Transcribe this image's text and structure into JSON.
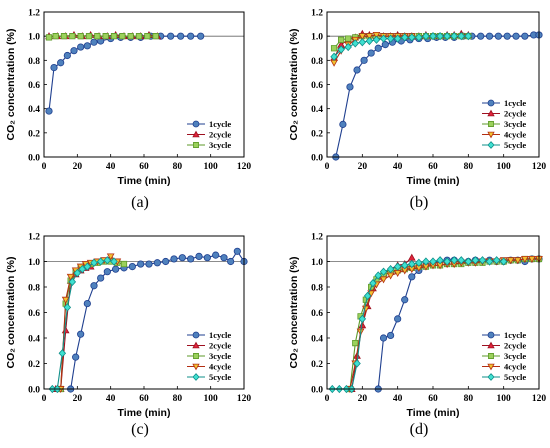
{
  "captions": [
    "(a)",
    "(b)",
    "(c)",
    "(d)"
  ],
  "series_styles": {
    "1cycle": {
      "color": "#4f81bd",
      "stroke": "#1f3f8f",
      "marker": "circle"
    },
    "2cycle": {
      "color": "#e0243b",
      "stroke": "#9e1020",
      "marker": "triangle"
    },
    "3cycle": {
      "color": "#9bd15c",
      "stroke": "#5e9a2a",
      "marker": "square"
    },
    "4cycle": {
      "color": "#f2c230",
      "stroke": "#b32e12",
      "marker": "triangle-down"
    },
    "5cycle": {
      "color": "#3fe0d0",
      "stroke": "#0f8f8a",
      "marker": "diamond"
    }
  },
  "chart_data": [
    {
      "type": "line",
      "panel": "(a)",
      "xlabel": "Time (min)",
      "ylabel": "CO₂ concentration (%)",
      "xlim": [
        0,
        120
      ],
      "ylim": [
        0,
        1.2
      ],
      "xticks": [
        "0",
        "20",
        "40",
        "60",
        "80",
        "100",
        "120"
      ],
      "yticks": [
        "0.0",
        "0.2",
        "0.4",
        "0.6",
        "0.8",
        "1.0",
        "1.2"
      ],
      "reference_line": 1.0,
      "legend": "bottom-right",
      "series": [
        {
          "name": "1cycle",
          "x": [
            3,
            6,
            10,
            14,
            18,
            22,
            26,
            30,
            34,
            40,
            46,
            52,
            58,
            64,
            70,
            76,
            82,
            88,
            94
          ],
          "y": [
            0.38,
            0.74,
            0.78,
            0.84,
            0.88,
            0.91,
            0.92,
            0.95,
            0.96,
            0.98,
            0.99,
            0.99,
            0.99,
            1.0,
            1.0,
            1.0,
            1.0,
            1.0,
            1.0
          ]
        },
        {
          "name": "2cycle",
          "x": [
            3,
            8,
            13,
            18,
            23,
            28,
            33,
            38,
            43,
            48,
            53,
            58,
            63,
            68
          ],
          "y": [
            1.0,
            1.0,
            1.0,
            1.01,
            1.0,
            1.01,
            1.0,
            1.0,
            1.01,
            1.0,
            1.0,
            1.0,
            1.01,
            1.0
          ]
        },
        {
          "name": "3cycle",
          "x": [
            3,
            7,
            12,
            17,
            22,
            27,
            32,
            37,
            42,
            47,
            52,
            57,
            62,
            67
          ],
          "y": [
            0.99,
            1.0,
            1.0,
            1.0,
            1.0,
            1.0,
            1.0,
            1.0,
            1.0,
            1.0,
            1.0,
            1.0,
            1.0,
            1.0
          ]
        }
      ]
    },
    {
      "type": "line",
      "panel": "(b)",
      "xlabel": "Time (min)",
      "ylabel": "CO₂ concentration (%)",
      "xlim": [
        0,
        120
      ],
      "ylim": [
        0,
        1.2
      ],
      "xticks": [
        "0",
        "20",
        "40",
        "60",
        "80",
        "100",
        "120"
      ],
      "yticks": [
        "0.0",
        "0.2",
        "0.4",
        "0.6",
        "0.8",
        "1.0",
        "1.2"
      ],
      "reference_line": 1.0,
      "legend": "bottom-right",
      "series": [
        {
          "name": "1cycle",
          "x": [
            5,
            9,
            13,
            17,
            21,
            25,
            29,
            33,
            37,
            42,
            47,
            52,
            57,
            62,
            67,
            72,
            77,
            82,
            87,
            92,
            97,
            102,
            107,
            112,
            117,
            120
          ],
          "y": [
            0.0,
            0.27,
            0.58,
            0.72,
            0.8,
            0.86,
            0.9,
            0.93,
            0.95,
            0.96,
            0.97,
            0.98,
            0.98,
            0.99,
            0.99,
            0.99,
            1.0,
            1.0,
            1.0,
            1.0,
            1.0,
            1.0,
            1.0,
            1.0,
            1.01,
            1.01
          ]
        },
        {
          "name": "2cycle",
          "x": [
            4,
            8,
            12,
            16,
            20,
            24,
            28,
            32,
            36,
            40,
            44,
            48,
            52,
            56,
            60,
            64,
            68,
            72,
            76,
            80
          ],
          "y": [
            0.82,
            0.93,
            0.97,
            0.99,
            1.02,
            1.01,
            1.0,
            1.0,
            1.0,
            1.01,
            1.0,
            1.0,
            1.0,
            1.01,
            1.0,
            1.0,
            1.01,
            1.01,
            1.02,
            1.01
          ]
        },
        {
          "name": "3cycle",
          "x": [
            4,
            8,
            12,
            16,
            20,
            24,
            28,
            32,
            36,
            40,
            44,
            48,
            52,
            56,
            60,
            64,
            68,
            72,
            76,
            80
          ],
          "y": [
            0.9,
            0.97,
            0.98,
            0.99,
            1.0,
            1.0,
            1.0,
            1.0,
            1.0,
            1.0,
            1.0,
            1.0,
            1.0,
            1.0,
            1.0,
            1.0,
            1.0,
            1.0,
            1.0,
            1.0
          ]
        },
        {
          "name": "4cycle",
          "x": [
            4,
            8,
            12,
            16,
            20,
            24,
            28,
            32,
            36,
            40,
            44,
            48
          ],
          "y": [
            0.78,
            0.88,
            0.93,
            0.97,
            1.0,
            1.0,
            1.01,
            1.0,
            1.0,
            1.0,
            1.0,
            1.0
          ]
        },
        {
          "name": "5cycle",
          "x": [
            4,
            8,
            12,
            16,
            20,
            24,
            28,
            32,
            36,
            40,
            44,
            48,
            52,
            56,
            60,
            64,
            68,
            72,
            76,
            80
          ],
          "y": [
            0.83,
            0.89,
            0.91,
            0.94,
            0.95,
            0.96,
            0.97,
            0.98,
            0.98,
            0.98,
            0.99,
            0.99,
            0.99,
            1.0,
            1.0,
            1.0,
            1.0,
            1.0,
            1.0,
            1.0
          ]
        }
      ]
    },
    {
      "type": "line",
      "panel": "(c)",
      "xlabel": "Time (min)",
      "ylabel": "CO₂ concentration (%)",
      "xlim": [
        0,
        120
      ],
      "ylim": [
        0,
        1.2
      ],
      "xticks": [
        "0",
        "20",
        "40",
        "60",
        "80",
        "100",
        "120"
      ],
      "yticks": [
        "0.0",
        "0.2",
        "0.4",
        "0.6",
        "0.8",
        "1.0",
        "1.2"
      ],
      "reference_line": 1.0,
      "legend": "bottom-right",
      "series": [
        {
          "name": "1cycle",
          "x": [
            16,
            19,
            22,
            26,
            30,
            34,
            38,
            43,
            48,
            53,
            58,
            63,
            68,
            73,
            78,
            83,
            88,
            93,
            98,
            103,
            108,
            112,
            116,
            120
          ],
          "y": [
            0.0,
            0.25,
            0.43,
            0.67,
            0.81,
            0.87,
            0.92,
            0.94,
            0.95,
            0.96,
            0.98,
            0.98,
            0.99,
            1.0,
            1.02,
            1.03,
            1.02,
            1.04,
            1.03,
            1.05,
            1.03,
            1.0,
            1.08,
            1.0
          ]
        },
        {
          "name": "2cycle",
          "x": [
            7,
            10,
            13,
            16,
            19,
            22,
            25,
            28
          ],
          "y": [
            0.0,
            0.0,
            0.46,
            0.85,
            0.9,
            0.93,
            0.95,
            0.96
          ]
        },
        {
          "name": "3cycle",
          "x": [
            10,
            13,
            16,
            19,
            22,
            25,
            28,
            32,
            36,
            40,
            44,
            48
          ],
          "y": [
            0.0,
            0.67,
            0.85,
            0.92,
            0.95,
            0.97,
            0.98,
            0.99,
            1.0,
            1.0,
            0.99,
            0.98
          ]
        },
        {
          "name": "4cycle",
          "x": [
            10,
            13,
            16,
            19,
            22,
            25,
            28,
            32,
            36,
            40,
            44
          ],
          "y": [
            0.0,
            0.7,
            0.88,
            0.93,
            0.96,
            0.98,
            0.99,
            1.0,
            1.01,
            1.04,
            1.0
          ]
        },
        {
          "name": "5cycle",
          "x": [
            5,
            8,
            11,
            14,
            17,
            20,
            23,
            26,
            30,
            34,
            38,
            42
          ],
          "y": [
            0.0,
            0.0,
            0.28,
            0.64,
            0.84,
            0.91,
            0.94,
            0.96,
            0.99,
            1.0,
            1.01,
            1.0
          ]
        }
      ]
    },
    {
      "type": "line",
      "panel": "(d)",
      "xlabel": "Time (min)",
      "ylabel": "CO₂ concentration (%)",
      "xlim": [
        0,
        120
      ],
      "ylim": [
        0,
        1.2
      ],
      "xticks": [
        "0",
        "20",
        "40",
        "60",
        "80",
        "100",
        "120"
      ],
      "yticks": [
        "0.0",
        "0.2",
        "0.4",
        "0.6",
        "0.8",
        "1.0",
        "1.2"
      ],
      "reference_line": 1.0,
      "legend": "bottom-right",
      "series": [
        {
          "name": "1cycle",
          "x": [
            29,
            32,
            36,
            40,
            44,
            48,
            52,
            56,
            60,
            64,
            68,
            72,
            76,
            80,
            84,
            88,
            92,
            96,
            100,
            104,
            108,
            112,
            116,
            120
          ],
          "y": [
            0.0,
            0.4,
            0.42,
            0.55,
            0.7,
            0.88,
            0.93,
            0.97,
            0.99,
            1.0,
            1.01,
            1.01,
            1.0,
            1.0,
            1.01,
            1.0,
            1.01,
            1.0,
            1.0,
            1.01,
            1.01,
            1.0,
            1.02,
            1.02
          ]
        },
        {
          "name": "2cycle",
          "x": [
            14,
            17,
            20,
            23,
            26,
            29,
            32,
            36,
            40,
            44,
            48
          ],
          "y": [
            0.0,
            0.26,
            0.5,
            0.65,
            0.79,
            0.88,
            0.91,
            0.94,
            0.97,
            0.98,
            1.03
          ]
        },
        {
          "name": "3cycle",
          "x": [
            13,
            16,
            19,
            22,
            25,
            28,
            32,
            36,
            40,
            44,
            48,
            52,
            56,
            60,
            64,
            68,
            72,
            76,
            80,
            84,
            88,
            92,
            96,
            100,
            104,
            108,
            112,
            116,
            120
          ],
          "y": [
            0.0,
            0.36,
            0.57,
            0.7,
            0.8,
            0.86,
            0.89,
            0.92,
            0.93,
            0.94,
            0.95,
            0.96,
            0.96,
            0.97,
            0.97,
            0.98,
            0.98,
            0.98,
            0.99,
            0.99,
            0.99,
            1.0,
            1.0,
            1.0,
            1.01,
            1.01,
            1.02,
            1.02,
            1.02
          ]
        },
        {
          "name": "4cycle",
          "x": [
            13,
            16,
            19,
            22,
            25,
            28,
            32,
            36,
            40,
            44,
            48,
            52,
            56,
            60,
            64,
            68,
            72,
            76,
            80,
            84,
            88,
            92,
            96,
            100,
            104,
            108,
            112,
            116,
            120
          ],
          "y": [
            0.0,
            0.2,
            0.45,
            0.63,
            0.75,
            0.82,
            0.86,
            0.89,
            0.91,
            0.93,
            0.94,
            0.95,
            0.96,
            0.97,
            0.97,
            0.98,
            0.98,
            0.99,
            0.99,
            0.99,
            1.0,
            1.0,
            1.0,
            1.01,
            1.01,
            1.01,
            1.02,
            1.02,
            1.02
          ]
        },
        {
          "name": "5cycle",
          "x": [
            3,
            7,
            11,
            14,
            17,
            20,
            23,
            26,
            29,
            32,
            36,
            40,
            44,
            48,
            52,
            56,
            60,
            64,
            68,
            72,
            76,
            80,
            84,
            88,
            92,
            96,
            100
          ],
          "y": [
            0.0,
            0.0,
            0.0,
            0.0,
            0.2,
            0.55,
            0.73,
            0.83,
            0.89,
            0.92,
            0.94,
            0.96,
            0.97,
            0.98,
            0.99,
            1.0,
            1.0,
            1.01,
            1.0,
            1.01,
            1.01,
            1.0,
            1.01,
            1.01,
            1.0,
            1.01,
            1.0
          ]
        }
      ]
    }
  ]
}
